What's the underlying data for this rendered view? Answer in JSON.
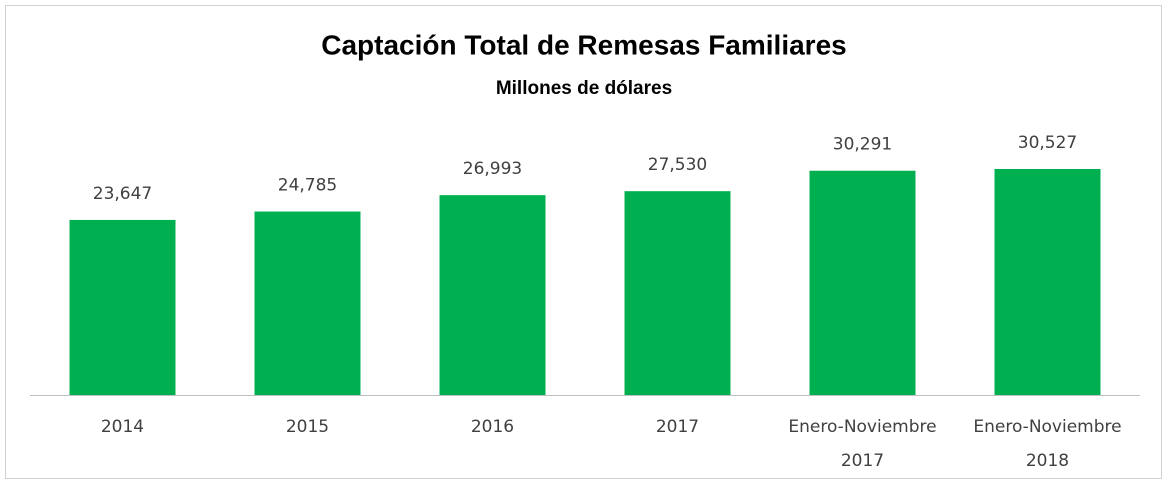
{
  "chart_data": {
    "type": "bar",
    "title": "Captación Total de Remesas Familiares",
    "subtitle": "Millones de dólares",
    "categories": [
      "2014",
      "2015",
      "2016",
      "2017",
      "Enero-Noviembre 2017",
      "Enero-Noviembre 2018"
    ],
    "values": [
      23647,
      24785,
      26993,
      27530,
      30291,
      30527
    ],
    "value_labels": [
      "23,647",
      "24,785",
      "26,993",
      "27,530",
      "30,291",
      "30,527"
    ],
    "color": "#00b050"
  }
}
